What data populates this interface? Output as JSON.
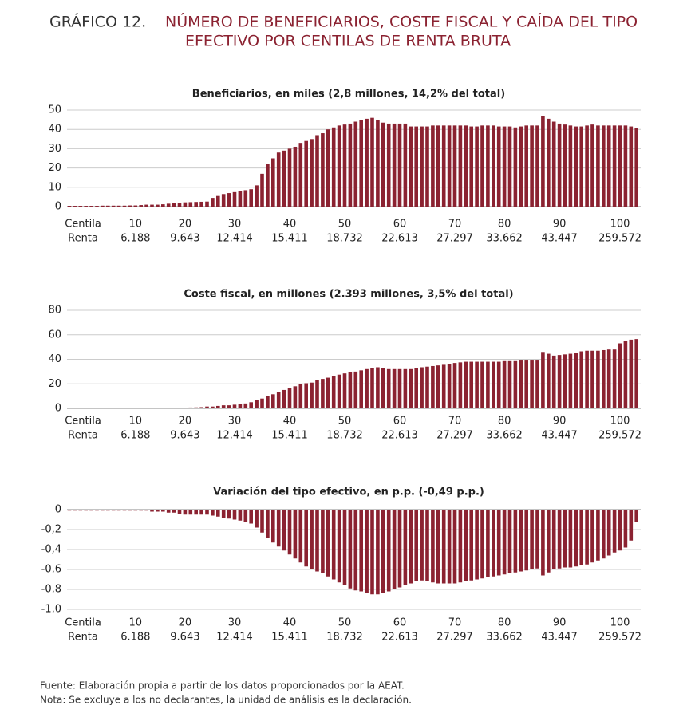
{
  "header": {
    "label": "GRÁFICO 12.",
    "title_lines": [
      "NÚMERO DE BENEFICIARIOS, COSTE FISCAL Y CAÍDA DEL TIPO",
      "EFECTIVO POR CENTILAS DE RENTA BRUTA"
    ]
  },
  "x_axis": {
    "row_labels": [
      "Centila",
      "Renta"
    ],
    "categories": [
      null,
      null,
      null,
      null,
      null,
      null,
      null,
      null,
      null,
      null,
      null,
      null,
      "10",
      null,
      null,
      null,
      null,
      null,
      null,
      null,
      null,
      "20",
      null,
      null,
      null,
      null,
      null,
      null,
      null,
      null,
      "30",
      null,
      null,
      null,
      null,
      null,
      null,
      null,
      null,
      null,
      "40",
      null,
      null,
      null,
      null,
      null,
      null,
      null,
      null,
      null,
      "50",
      null,
      null,
      null,
      null,
      null,
      null,
      null,
      null,
      null,
      "60",
      null,
      null,
      null,
      null,
      null,
      null,
      null,
      null,
      null,
      "70",
      null,
      null,
      null,
      null,
      null,
      null,
      null,
      null,
      "80",
      null,
      null,
      null,
      null,
      null,
      null,
      null,
      null,
      null,
      "90",
      null,
      null,
      null,
      null,
      null,
      null,
      null,
      null,
      null,
      null,
      "100",
      null,
      null,
      null
    ],
    "renta": [
      null,
      null,
      null,
      null,
      null,
      null,
      null,
      null,
      null,
      null,
      null,
      null,
      "6.188",
      null,
      null,
      null,
      null,
      null,
      null,
      null,
      null,
      "9.643",
      null,
      null,
      null,
      null,
      null,
      null,
      null,
      null,
      "12.414",
      null,
      null,
      null,
      null,
      null,
      null,
      null,
      null,
      null,
      "15.411",
      null,
      null,
      null,
      null,
      null,
      null,
      null,
      null,
      null,
      "18.732",
      null,
      null,
      null,
      null,
      null,
      null,
      null,
      null,
      null,
      "22.613",
      null,
      null,
      null,
      null,
      null,
      null,
      null,
      null,
      null,
      "27.297",
      null,
      null,
      null,
      null,
      null,
      null,
      null,
      null,
      "33.662",
      null,
      null,
      null,
      null,
      null,
      null,
      null,
      null,
      null,
      "43.447",
      null,
      null,
      null,
      null,
      null,
      null,
      null,
      null,
      null,
      null,
      "259.572",
      null,
      null,
      null
    ]
  },
  "chart_data": [
    {
      "type": "bar",
      "title": "Beneficiarios, en miles (2,8 millones, 14,2% del total)",
      "color": "#8b2231",
      "grid": true,
      "ylim": [
        0,
        50
      ],
      "yticks": [
        0,
        10,
        20,
        30,
        40,
        50
      ],
      "values": [
        0.4,
        0.4,
        0.4,
        0.4,
        0.4,
        0.4,
        0.5,
        0.5,
        0.5,
        0.5,
        0.5,
        0.6,
        0.6,
        0.8,
        1.0,
        1.0,
        1.0,
        1.2,
        1.5,
        1.8,
        2.0,
        2.2,
        2.3,
        2.4,
        2.5,
        2.6,
        4.5,
        5.5,
        6.5,
        7.0,
        7.5,
        8.0,
        8.5,
        9.0,
        11,
        17,
        22,
        25,
        28,
        29,
        30,
        31,
        33,
        34,
        35,
        37,
        38,
        40,
        41,
        42,
        42.5,
        43,
        44,
        45,
        45.5,
        46,
        45,
        43.5,
        43,
        43,
        43,
        43,
        41.5,
        41.5,
        41.5,
        41.5,
        42,
        42,
        42,
        42,
        42,
        42,
        42,
        41.5,
        41.5,
        42,
        42,
        42,
        41.5,
        41.5,
        41.5,
        41,
        41.5,
        42,
        42,
        42,
        47,
        45.5,
        44,
        43,
        42.5,
        42,
        41.5,
        41.5,
        42,
        42.5,
        42,
        42,
        42,
        42,
        42,
        42,
        41.5,
        40.5
      ]
    },
    {
      "type": "bar",
      "title": "Coste fiscal, en millones (2.393 millones, 3,5% del total)",
      "color": "#8b2231",
      "grid": true,
      "ylim": [
        0,
        80
      ],
      "yticks": [
        0,
        20,
        40,
        60,
        80
      ],
      "values": [
        0.5,
        0.5,
        0.5,
        0.5,
        0.5,
        0.5,
        0.5,
        0.5,
        0.5,
        0.5,
        0.5,
        0.5,
        0.5,
        0.5,
        0.5,
        0.5,
        0.5,
        0.5,
        0.5,
        0.5,
        0.6,
        0.6,
        0.7,
        0.8,
        1.0,
        1.5,
        1.5,
        2.0,
        2.5,
        2.5,
        3,
        3.5,
        4,
        5,
        6.5,
        8,
        10,
        11.5,
        13,
        15,
        16.5,
        18,
        20,
        20.5,
        21,
        23,
        24,
        25,
        26.5,
        27.5,
        28.5,
        29.5,
        30,
        31,
        32,
        33,
        33.5,
        33,
        32,
        32,
        32,
        32,
        32,
        33,
        33.5,
        34,
        34.5,
        35,
        35.5,
        36,
        37,
        37.5,
        38,
        38,
        38,
        38,
        38,
        38,
        38,
        38.5,
        38.5,
        38.5,
        39,
        39,
        39,
        39,
        46,
        44.5,
        43,
        43.5,
        44,
        44.5,
        45,
        46.5,
        47,
        47,
        47,
        47.5,
        48,
        48,
        53,
        55,
        56,
        56.5
      ]
    },
    {
      "type": "bar",
      "title": "Variación del tipo efectivo, en p.p. (-0,49 p.p.)",
      "color": "#8b2231",
      "grid": true,
      "ylim": [
        -1,
        0
      ],
      "yticks": [
        0,
        {
          "value": -0.2,
          "label": "-0,2"
        },
        {
          "value": -0.4,
          "label": "-0,4"
        },
        {
          "value": -0.6,
          "label": "-0,6"
        },
        {
          "value": -0.8,
          "label": "-0,8"
        },
        {
          "value": -1,
          "label": "-1,0"
        }
      ],
      "values": [
        -0.01,
        -0.01,
        -0.01,
        -0.01,
        -0.01,
        -0.01,
        -0.01,
        -0.01,
        -0.01,
        -0.01,
        -0.01,
        -0.01,
        -0.01,
        -0.01,
        -0.01,
        -0.02,
        -0.02,
        -0.02,
        -0.03,
        -0.03,
        -0.04,
        -0.05,
        -0.05,
        -0.05,
        -0.05,
        -0.05,
        -0.06,
        -0.07,
        -0.08,
        -0.09,
        -0.1,
        -0.11,
        -0.12,
        -0.14,
        -0.18,
        -0.23,
        -0.28,
        -0.33,
        -0.37,
        -0.41,
        -0.45,
        -0.49,
        -0.53,
        -0.57,
        -0.6,
        -0.62,
        -0.64,
        -0.67,
        -0.7,
        -0.73,
        -0.76,
        -0.79,
        -0.81,
        -0.82,
        -0.84,
        -0.85,
        -0.85,
        -0.84,
        -0.82,
        -0.8,
        -0.78,
        -0.76,
        -0.74,
        -0.72,
        -0.71,
        -0.72,
        -0.73,
        -0.74,
        -0.74,
        -0.74,
        -0.74,
        -0.73,
        -0.72,
        -0.71,
        -0.7,
        -0.69,
        -0.68,
        -0.67,
        -0.66,
        -0.65,
        -0.64,
        -0.63,
        -0.62,
        -0.61,
        -0.6,
        -0.59,
        -0.66,
        -0.63,
        -0.6,
        -0.59,
        -0.58,
        -0.58,
        -0.57,
        -0.56,
        -0.55,
        -0.53,
        -0.51,
        -0.49,
        -0.46,
        -0.43,
        -0.41,
        -0.38,
        -0.31,
        -0.12
      ]
    }
  ],
  "notes": [
    "Fuente: Elaboración propia a partir de los datos proporcionados por la AEAT.",
    "Nota: Se excluye a los no declarantes, la unidad de análisis es la declaración."
  ]
}
